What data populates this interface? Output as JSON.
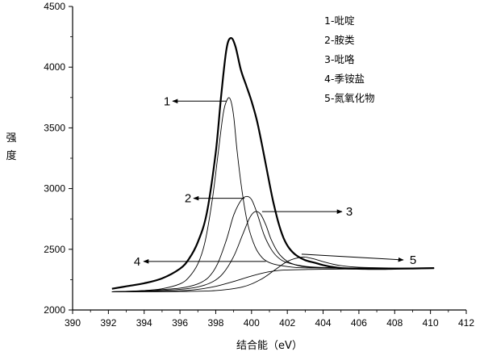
{
  "chart_data": {
    "type": "line",
    "xlabel": "结合能（eV）",
    "ylabel": "强度",
    "xlim": [
      390,
      412
    ],
    "ylim": [
      2000,
      4500
    ],
    "x_ticks": [
      390,
      392,
      394,
      396,
      398,
      400,
      402,
      404,
      406,
      408,
      410,
      412
    ],
    "y_ticks": [
      2000,
      2500,
      3000,
      3500,
      4000,
      4500
    ],
    "grid": false,
    "legend_position": "top-right",
    "legend": [
      "1-吡啶",
      "2-胺类",
      "3-吡咯",
      "4-季铵盐",
      "5-氮氧化物"
    ],
    "callouts": [
      {
        "label": "1",
        "x": 398.7,
        "y": 3720
      },
      {
        "label": "2",
        "x": 399.7,
        "y": 2920
      },
      {
        "label": "3",
        "x": 400.5,
        "y": 2810
      },
      {
        "label": "4",
        "x": 400.8,
        "y": 2400
      },
      {
        "label": "5",
        "x": 402.8,
        "y": 2420
      }
    ],
    "series": [
      {
        "role": "envelope",
        "x": [
          392.2,
          393,
          394,
          395,
          396,
          396.5,
          397,
          397.5,
          398,
          398.3,
          398.6,
          398.85,
          399.1,
          399.4,
          399.7,
          400.0,
          400.3,
          400.6,
          400.9,
          401.2,
          401.5,
          401.8,
          402.1,
          402.5,
          403,
          403.5,
          404,
          404.5,
          405,
          406,
          407,
          408,
          409,
          410.2
        ],
        "y": [
          2175,
          2195,
          2220,
          2260,
          2340,
          2420,
          2560,
          2800,
          3300,
          3760,
          4150,
          4240,
          4170,
          3980,
          3850,
          3720,
          3560,
          3350,
          3120,
          2900,
          2720,
          2590,
          2510,
          2450,
          2410,
          2390,
          2370,
          2355,
          2345,
          2340,
          2338,
          2340,
          2342,
          2345
        ]
      },
      {
        "role": "component-1",
        "x": [
          392.2,
          394,
          395,
          396,
          396.5,
          397,
          397.4,
          397.8,
          398.1,
          398.4,
          398.6,
          398.8,
          399.0,
          399.2,
          399.5,
          399.8,
          400.2,
          400.6,
          401,
          401.5,
          402.5,
          404,
          406,
          408,
          410.2
        ],
        "y": [
          2150,
          2160,
          2175,
          2215,
          2270,
          2380,
          2560,
          2900,
          3250,
          3600,
          3720,
          3740,
          3600,
          3300,
          2950,
          2700,
          2520,
          2430,
          2390,
          2370,
          2350,
          2345,
          2342,
          2343,
          2345
        ]
      },
      {
        "role": "component-2",
        "x": [
          392.2,
          394,
          396,
          397,
          397.6,
          398.1,
          398.6,
          399.0,
          399.4,
          399.7,
          400.0,
          400.3,
          400.7,
          401.1,
          401.5,
          402,
          403,
          404,
          406,
          408,
          410.2
        ],
        "y": [
          2150,
          2160,
          2180,
          2215,
          2270,
          2380,
          2580,
          2780,
          2900,
          2935,
          2910,
          2800,
          2620,
          2500,
          2430,
          2390,
          2360,
          2350,
          2345,
          2343,
          2345
        ]
      },
      {
        "role": "component-3",
        "x": [
          392.2,
          394,
          396,
          397,
          397.8,
          398.4,
          399.0,
          399.5,
          399.9,
          400.2,
          400.5,
          400.8,
          401.1,
          401.5,
          402,
          402.5,
          403,
          404,
          406,
          408,
          410.2
        ],
        "y": [
          2150,
          2155,
          2170,
          2190,
          2230,
          2300,
          2440,
          2620,
          2760,
          2810,
          2790,
          2700,
          2580,
          2470,
          2400,
          2370,
          2355,
          2348,
          2344,
          2343,
          2345
        ]
      },
      {
        "role": "component-4",
        "x": [
          392.2,
          394,
          396,
          397,
          398,
          399,
          400,
          400.8,
          401.5,
          402,
          403,
          404,
          406,
          408,
          410.2
        ],
        "y": [
          2150,
          2152,
          2158,
          2170,
          2195,
          2235,
          2280,
          2310,
          2325,
          2330,
          2333,
          2335,
          2338,
          2340,
          2342
        ]
      },
      {
        "role": "component-5",
        "x": [
          392.2,
          394,
          396,
          398,
          399.5,
          400.5,
          401.3,
          402,
          402.6,
          403.0,
          403.5,
          404.2,
          405,
          406,
          408,
          410.2
        ],
        "y": [
          2150,
          2150,
          2152,
          2160,
          2190,
          2250,
          2330,
          2400,
          2430,
          2435,
          2420,
          2390,
          2365,
          2352,
          2345,
          2345
        ]
      }
    ]
  }
}
